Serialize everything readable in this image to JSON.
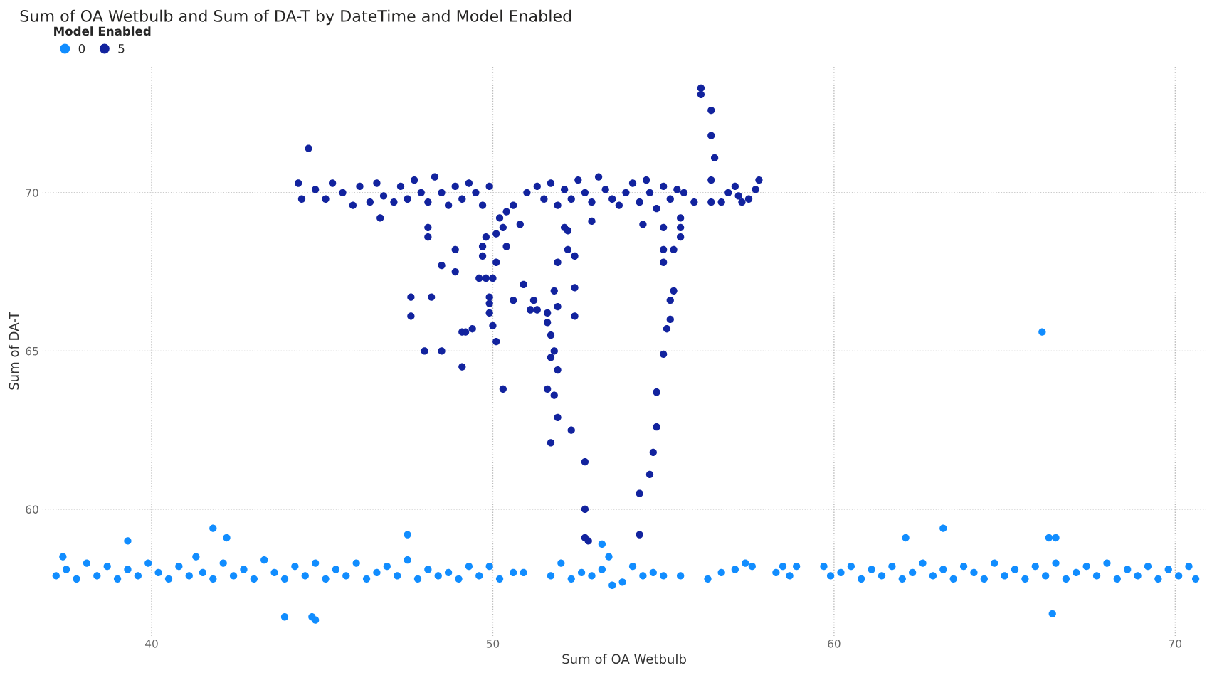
{
  "chart_data": {
    "type": "scatter",
    "title": "Sum of OA Wetbulb and Sum of DA-T by DateTime and Model Enabled",
    "xlabel": "Sum of OA Wetbulb",
    "ylabel": "Sum of DA-T",
    "legend_title": "Model Enabled",
    "legend": "top left",
    "grid": true,
    "marker": "circle",
    "xlim": [
      36.8,
      70.9
    ],
    "ylim": [
      56,
      74
    ],
    "xticks": [
      40,
      50,
      60,
      70
    ],
    "yticks": [
      60,
      65,
      70
    ],
    "series": [
      {
        "name": "0",
        "color": "#118dff",
        "x": [
          37.2,
          37.5,
          37.8,
          38.1,
          38.4,
          38.7,
          39.0,
          39.3,
          39.6,
          39.9,
          40.2,
          40.5,
          40.8,
          41.1,
          41.3,
          41.5,
          41.8,
          42.1,
          42.4,
          42.7,
          43.0,
          43.3,
          43.6,
          43.9,
          44.2,
          44.5,
          44.8,
          45.1,
          45.4,
          45.7,
          46.0,
          46.3,
          46.6,
          46.9,
          47.2,
          47.5,
          47.8,
          48.1,
          48.4,
          48.7,
          49.0,
          49.3,
          49.6,
          49.9,
          50.2,
          50.6,
          50.9,
          51.7,
          52.0,
          52.3,
          52.6,
          52.9,
          53.2,
          53.5,
          53.8,
          54.1,
          54.4,
          54.7,
          55.0,
          55.5,
          56.3,
          56.7,
          57.1,
          57.4,
          57.6,
          58.3,
          58.5,
          58.7,
          58.9,
          59.7,
          59.9,
          60.2,
          60.5,
          60.8,
          61.1,
          61.4,
          61.7,
          62.0,
          62.3,
          62.6,
          62.9,
          63.2,
          63.5,
          63.8,
          64.1,
          64.4,
          64.7,
          65.0,
          65.3,
          65.6,
          65.9,
          66.2,
          66.5,
          66.8,
          67.1,
          67.4,
          67.7,
          68.0,
          68.3,
          68.6,
          68.9,
          69.2,
          69.5,
          69.8,
          70.1,
          70.4,
          70.6,
          37.4,
          39.3,
          41.8,
          42.2,
          47.5,
          43.9,
          44.7,
          44.8,
          66.1,
          62.1,
          63.2,
          66.3,
          66.5,
          66.4,
          53.4,
          53.2
        ],
        "values": [
          57.9,
          58.1,
          57.8,
          58.3,
          57.9,
          58.2,
          57.8,
          58.1,
          57.9,
          58.3,
          58.0,
          57.8,
          58.2,
          57.9,
          58.5,
          58.0,
          57.8,
          58.3,
          57.9,
          58.1,
          57.8,
          58.4,
          58.0,
          57.8,
          58.2,
          57.9,
          58.3,
          57.8,
          58.1,
          57.9,
          58.3,
          57.8,
          58.0,
          58.2,
          57.9,
          58.4,
          57.8,
          58.1,
          57.9,
          58.0,
          57.8,
          58.2,
          57.9,
          58.2,
          57.8,
          58.0,
          58.0,
          57.9,
          58.3,
          57.8,
          58.0,
          57.9,
          58.1,
          57.6,
          57.7,
          58.2,
          57.9,
          58.0,
          57.9,
          57.9,
          57.8,
          58.0,
          58.1,
          58.3,
          58.2,
          58.0,
          58.2,
          57.9,
          58.2,
          58.2,
          57.9,
          58.0,
          58.2,
          57.8,
          58.1,
          57.9,
          58.2,
          57.8,
          58.0,
          58.3,
          57.9,
          58.1,
          57.8,
          58.2,
          58.0,
          57.8,
          58.3,
          57.9,
          58.1,
          57.8,
          58.2,
          57.9,
          58.3,
          57.8,
          58.0,
          58.2,
          57.9,
          58.3,
          57.8,
          58.1,
          57.9,
          58.2,
          57.8,
          58.1,
          57.9,
          58.2,
          57.8,
          58.5,
          59.0,
          59.4,
          59.1,
          59.2,
          56.6,
          56.6,
          56.5,
          65.6,
          59.1,
          59.4,
          59.1,
          59.1,
          56.7,
          58.5,
          58.9
        ]
      },
      {
        "name": "5",
        "color": "#12239e",
        "x": [
          44.3,
          44.4,
          44.8,
          45.1,
          45.3,
          45.6,
          45.9,
          46.1,
          46.4,
          46.6,
          46.8,
          47.1,
          47.3,
          47.5,
          47.7,
          47.9,
          48.1,
          48.3,
          48.5,
          48.7,
          48.9,
          49.1,
          49.3,
          49.5,
          49.7,
          49.9,
          50.4,
          50.6,
          51.0,
          51.3,
          51.5,
          51.7,
          51.9,
          52.1,
          52.3,
          52.5,
          52.7,
          52.9,
          53.1,
          53.3,
          53.5,
          53.7,
          53.9,
          54.1,
          54.3,
          54.5,
          54.6,
          54.8,
          55.0,
          55.2,
          55.4,
          55.6,
          55.9,
          56.9,
          57.1,
          57.3,
          57.5,
          57.7,
          57.8,
          57.2,
          56.7,
          44.6,
          56.1,
          56.1,
          56.4,
          56.4,
          56.5,
          56.4,
          56.4,
          46.7,
          48.1,
          48.1,
          48.9,
          48.5,
          48.9,
          49.7,
          49.7,
          49.8,
          50.1,
          50.3,
          50.4,
          50.1,
          50.0,
          49.6,
          49.8,
          49.9,
          49.9,
          49.9,
          50.0,
          50.1,
          50.3,
          49.4,
          49.1,
          49.2,
          49.1,
          47.6,
          47.6,
          48.2,
          48.0,
          48.5,
          50.2,
          50.8,
          50.6,
          50.9,
          51.1,
          51.2,
          51.3,
          51.6,
          51.6,
          51.7,
          51.8,
          51.7,
          51.9,
          51.6,
          51.8,
          51.9,
          51.7,
          52.3,
          51.8,
          51.9,
          51.9,
          52.4,
          52.4,
          52.4,
          52.2,
          52.1,
          52.2,
          52.9,
          52.7,
          52.7,
          52.7,
          52.8,
          54.3,
          54.6,
          54.7,
          54.8,
          54.8,
          55.0,
          55.1,
          55.2,
          55.2,
          55.3,
          55.0,
          55.0,
          55.3,
          55.5,
          55.5,
          55.5,
          55.0,
          54.4,
          54.3
        ],
        "values": [
          70.3,
          69.8,
          70.1,
          69.8,
          70.3,
          70.0,
          69.6,
          70.2,
          69.7,
          70.3,
          69.9,
          69.7,
          70.2,
          69.8,
          70.4,
          70.0,
          69.7,
          70.5,
          70.0,
          69.6,
          70.2,
          69.8,
          70.3,
          70.0,
          69.6,
          70.2,
          69.4,
          69.6,
          70.0,
          70.2,
          69.8,
          70.3,
          69.6,
          70.1,
          69.8,
          70.4,
          70.0,
          69.7,
          70.5,
          70.1,
          69.8,
          69.6,
          70.0,
          70.3,
          69.7,
          70.4,
          70.0,
          69.5,
          70.2,
          69.8,
          70.1,
          70.0,
          69.7,
          70.0,
          70.2,
          69.7,
          69.8,
          70.1,
          70.4,
          69.9,
          69.7,
          71.4,
          73.3,
          73.1,
          72.6,
          71.8,
          71.1,
          70.4,
          69.7,
          69.2,
          68.9,
          68.6,
          68.2,
          67.7,
          67.5,
          68.3,
          68.0,
          68.6,
          68.7,
          68.9,
          68.3,
          67.8,
          67.3,
          67.3,
          67.3,
          66.7,
          66.5,
          66.2,
          65.8,
          65.3,
          63.8,
          65.7,
          65.6,
          65.6,
          64.5,
          66.7,
          66.1,
          66.7,
          65.0,
          65.0,
          69.2,
          69.0,
          66.6,
          67.1,
          66.3,
          66.6,
          66.3,
          66.2,
          65.9,
          65.5,
          65.0,
          64.8,
          64.4,
          63.8,
          63.6,
          62.9,
          62.1,
          62.5,
          66.9,
          66.4,
          67.8,
          68.0,
          67.0,
          66.1,
          68.2,
          68.9,
          68.8,
          69.1,
          61.5,
          60.0,
          59.1,
          59.0,
          60.5,
          61.1,
          61.8,
          62.6,
          63.7,
          64.9,
          65.7,
          66.0,
          66.6,
          66.9,
          67.8,
          68.2,
          68.2,
          68.9,
          68.6,
          69.2,
          68.9,
          69.0,
          59.2
        ]
      }
    ]
  }
}
